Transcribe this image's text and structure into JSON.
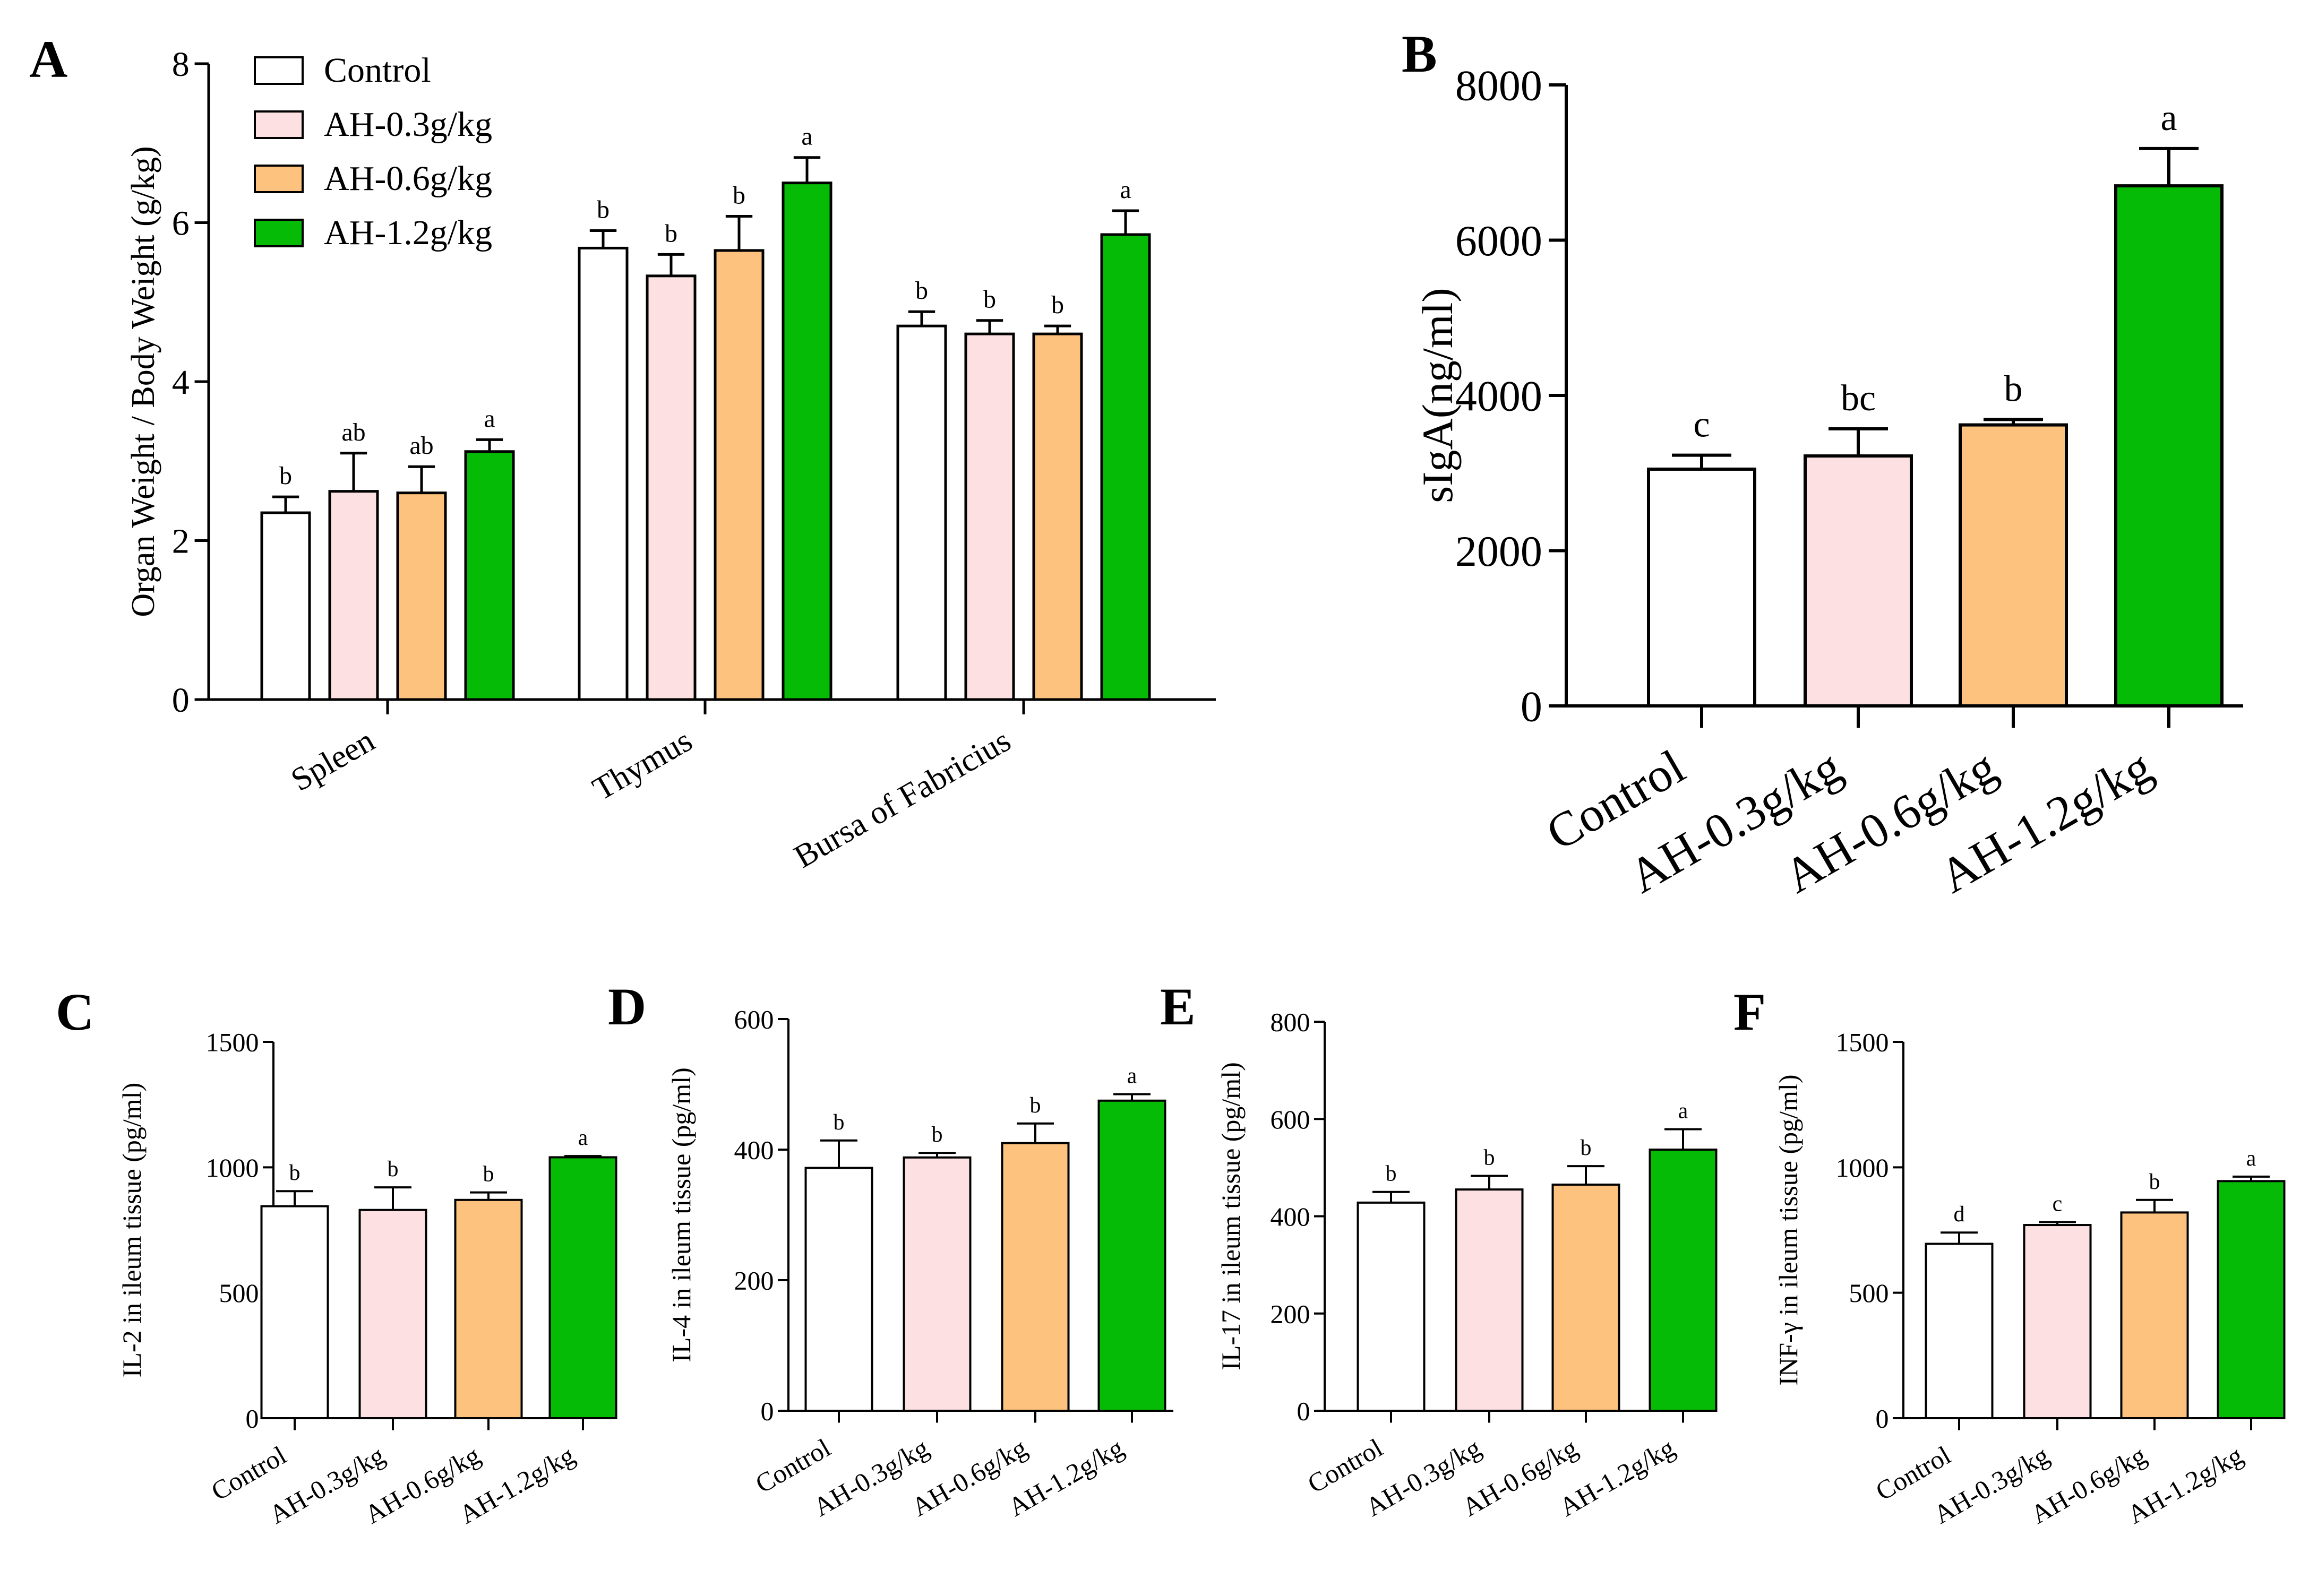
{
  "colors": {
    "Control": "#ffffff",
    "AH-0.3g/kg": "#fde0e1",
    "AH-0.6g/kg": "#fdc27e",
    "AH-1.2g/kg": "#06bb06",
    "stroke": "#000000"
  },
  "chart_data": [
    {
      "id": "A",
      "panel_letter": "A",
      "type": "bar",
      "title": "",
      "xlabel": "",
      "ylabel": "Organ Weight / Body Weight (g/kg)",
      "ylim": [
        0,
        8
      ],
      "yticks": [
        0,
        2,
        4,
        6,
        8
      ],
      "categories": [
        "Spleen",
        "Thymus",
        "Bursa of Fabricius"
      ],
      "legend": [
        "Control",
        "AH-0.3g/kg",
        "AH-0.6g/kg",
        "AH-1.2g/kg"
      ],
      "legend_position": "top-left",
      "series": [
        {
          "name": "Control",
          "values": [
            2.35,
            5.68,
            4.7
          ],
          "errors": [
            0.2,
            0.22,
            0.18
          ],
          "labels": [
            "b",
            "b",
            "b"
          ]
        },
        {
          "name": "AH-0.3g/kg",
          "values": [
            2.62,
            5.33,
            4.6
          ],
          "errors": [
            0.48,
            0.27,
            0.17
          ],
          "labels": [
            "ab",
            "b",
            "b"
          ]
        },
        {
          "name": "AH-0.6g/kg",
          "values": [
            2.6,
            5.65,
            4.6
          ],
          "errors": [
            0.33,
            0.43,
            0.1
          ],
          "labels": [
            "ab",
            "b",
            "b"
          ]
        },
        {
          "name": "AH-1.2g/kg",
          "values": [
            3.12,
            6.5,
            5.85
          ],
          "errors": [
            0.15,
            0.32,
            0.3
          ],
          "labels": [
            "a",
            "a",
            "a"
          ]
        }
      ]
    },
    {
      "id": "B",
      "panel_letter": "B",
      "type": "bar",
      "title": "",
      "xlabel": "",
      "ylabel": "sIgA(ng/ml)",
      "ylim": [
        0,
        8000
      ],
      "yticks": [
        0,
        2000,
        4000,
        6000,
        8000
      ],
      "categories": [
        "Control",
        "AH-0.3g/kg",
        "AH-0.6g/kg",
        "AH-1.2g/kg"
      ],
      "values": [
        3050,
        3220,
        3620,
        6700
      ],
      "errors": [
        180,
        350,
        70,
        480
      ],
      "labels": [
        "c",
        "bc",
        "b",
        "a"
      ]
    },
    {
      "id": "C",
      "panel_letter": "C",
      "type": "bar",
      "title": "",
      "xlabel": "",
      "ylabel": "IL-2 in ileum tissue (pg/ml)",
      "ylim": [
        0,
        1500
      ],
      "yticks": [
        0,
        500,
        1000,
        1500
      ],
      "categories": [
        "Control",
        "AH-0.3g/kg",
        "AH-0.6g/kg",
        "AH-1.2g/kg"
      ],
      "values": [
        845,
        830,
        870,
        1040
      ],
      "errors": [
        60,
        90,
        30,
        5
      ],
      "labels": [
        "b",
        "b",
        "b",
        "a"
      ]
    },
    {
      "id": "D",
      "panel_letter": "D",
      "type": "bar",
      "title": "",
      "xlabel": "",
      "ylabel": "IL-4 in ileum tissue  (pg/ml)",
      "ylim": [
        0,
        600
      ],
      "yticks": [
        0,
        200,
        400,
        600
      ],
      "categories": [
        "Control",
        "AH-0.3g/kg",
        "AH-0.6g/kg",
        "AH-1.2g/kg"
      ],
      "values": [
        372,
        388,
        410,
        475
      ],
      "errors": [
        42,
        7,
        30,
        10
      ],
      "labels": [
        "b",
        "b",
        "b",
        "a"
      ]
    },
    {
      "id": "E",
      "panel_letter": "E",
      "type": "bar",
      "title": "",
      "xlabel": "",
      "ylabel": "IL-17 in ileum tissue  (pg/ml)",
      "ylim": [
        0,
        800
      ],
      "yticks": [
        0,
        200,
        400,
        600,
        800
      ],
      "categories": [
        "Control",
        "AH-0.3g/kg",
        "AH-0.6g/kg",
        "AH-1.2g/kg"
      ],
      "values": [
        428,
        455,
        465,
        537
      ],
      "errors": [
        22,
        28,
        38,
        42
      ],
      "labels": [
        "b",
        "b",
        "b",
        "a"
      ]
    },
    {
      "id": "F",
      "panel_letter": "F",
      "type": "bar",
      "title": "",
      "xlabel": "",
      "ylabel": "INF-γ in ileum tissue  (pg/ml)",
      "ylim": [
        0,
        1500
      ],
      "yticks": [
        0,
        500,
        1000,
        1500
      ],
      "categories": [
        "Control",
        "AH-0.3g/kg",
        "AH-0.6g/kg",
        "AH-1.2g/kg"
      ],
      "values": [
        695,
        770,
        820,
        945
      ],
      "errors": [
        45,
        12,
        50,
        18
      ],
      "labels": [
        "d",
        "c",
        "b",
        "a"
      ]
    }
  ]
}
